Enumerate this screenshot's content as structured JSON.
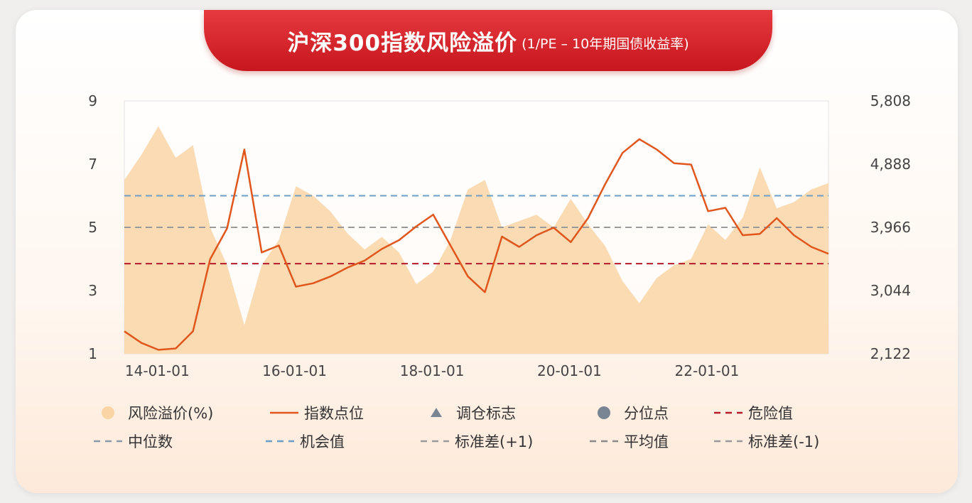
{
  "title": "沪深300指数风险溢价",
  "subtitle": "(1/PE – 10年期国债收益率)",
  "colors": {
    "area": "#f9d5a6",
    "line": "#e0561c",
    "danger": "#b5192a",
    "median": "#8a9aa8",
    "opportunity": "#6d9ec6",
    "std": "#9a9a9a",
    "mean": "#8a8a8a"
  },
  "chart_data": {
    "type": "line",
    "x_ticks": [
      "14-01-01",
      "16-01-01",
      "18-01-01",
      "20-01-01",
      "22-01-01"
    ],
    "y_left_ticks": [
      "9",
      "7",
      "5",
      "3",
      "1"
    ],
    "y_right_ticks": [
      "5,808",
      "4,888",
      "3,966",
      "3,044",
      "2,122"
    ],
    "y_left_range": [
      1,
      9
    ],
    "y_right_range": [
      2122,
      5808
    ],
    "x_range": [
      "2013-09-01",
      "2023-12-01"
    ],
    "reference_lines": [
      {
        "name": "机会值",
        "value": 6.0,
        "style": "dash",
        "color": "#6d9ec6"
      },
      {
        "name": "标准差(+1)",
        "value": 5.0,
        "style": "dash",
        "color": "#9a9a9a"
      },
      {
        "name": "危险值",
        "value": 3.85,
        "style": "dash",
        "color": "#b5192a"
      }
    ],
    "series": [
      {
        "name": "风险溢价(%)",
        "axis": "left",
        "type": "area",
        "x": [
          "2013-09",
          "2013-12",
          "2014-03",
          "2014-06",
          "2014-09",
          "2014-12",
          "2015-03",
          "2015-06",
          "2015-09",
          "2015-12",
          "2016-03",
          "2016-06",
          "2016-09",
          "2016-12",
          "2017-03",
          "2017-06",
          "2017-09",
          "2017-12",
          "2018-03",
          "2018-06",
          "2018-09",
          "2018-12",
          "2019-03",
          "2019-06",
          "2019-09",
          "2019-12",
          "2020-03",
          "2020-06",
          "2020-09",
          "2020-12",
          "2021-03",
          "2021-06",
          "2021-09",
          "2021-12",
          "2022-03",
          "2022-06",
          "2022-09",
          "2022-12",
          "2023-03",
          "2023-06",
          "2023-09",
          "2023-12"
        ],
        "values": [
          6.5,
          7.3,
          8.2,
          7.2,
          7.6,
          5.0,
          3.8,
          1.9,
          3.8,
          4.6,
          6.3,
          6.0,
          5.5,
          4.8,
          4.3,
          4.7,
          4.2,
          3.2,
          3.6,
          4.6,
          6.2,
          6.5,
          5.0,
          5.2,
          5.4,
          5.0,
          5.9,
          5.1,
          4.4,
          3.3,
          2.6,
          3.4,
          3.8,
          4.0,
          5.1,
          4.6,
          5.3,
          6.9,
          5.6,
          5.8,
          6.2,
          6.4
        ]
      },
      {
        "name": "指数点位",
        "axis": "right",
        "type": "line",
        "x": [
          "2013-09",
          "2013-12",
          "2014-03",
          "2014-06",
          "2014-09",
          "2014-12",
          "2015-03",
          "2015-06",
          "2015-09",
          "2015-12",
          "2016-03",
          "2016-06",
          "2016-09",
          "2016-12",
          "2017-03",
          "2017-06",
          "2017-09",
          "2017-12",
          "2018-03",
          "2018-06",
          "2018-09",
          "2018-12",
          "2019-03",
          "2019-06",
          "2019-09",
          "2019-12",
          "2020-03",
          "2020-06",
          "2020-09",
          "2020-12",
          "2021-03",
          "2021-06",
          "2021-09",
          "2021-12",
          "2022-03",
          "2022-06",
          "2022-09",
          "2022-12",
          "2023-03",
          "2023-06",
          "2023-09",
          "2023-12"
        ],
        "values": [
          2450,
          2280,
          2180,
          2200,
          2450,
          3500,
          3950,
          5100,
          3600,
          3700,
          3100,
          3150,
          3250,
          3380,
          3480,
          3650,
          3780,
          3980,
          4150,
          3700,
          3250,
          3020,
          3830,
          3680,
          3850,
          3960,
          3750,
          4100,
          4600,
          5050,
          5250,
          5100,
          4900,
          4880,
          4200,
          4250,
          3850,
          3870,
          4100,
          3850,
          3680,
          3580
        ]
      }
    ]
  },
  "legend": [
    {
      "label": "风险溢价(%)",
      "icon": "circle-area"
    },
    {
      "label": "指数点位",
      "icon": "solid-line"
    },
    {
      "label": "调仓标志",
      "icon": "triangle"
    },
    {
      "label": "分位点",
      "icon": "circle"
    },
    {
      "label": "危险值",
      "icon": "dash-red"
    },
    {
      "label": "中位数",
      "icon": "dash-gray"
    },
    {
      "label": "机会值",
      "icon": "dash-blue"
    },
    {
      "label": "标准差(+1)",
      "icon": "dash-gray"
    },
    {
      "label": "平均值",
      "icon": "dash-gray"
    },
    {
      "label": "标准差(-1)",
      "icon": "dash-gray"
    }
  ]
}
